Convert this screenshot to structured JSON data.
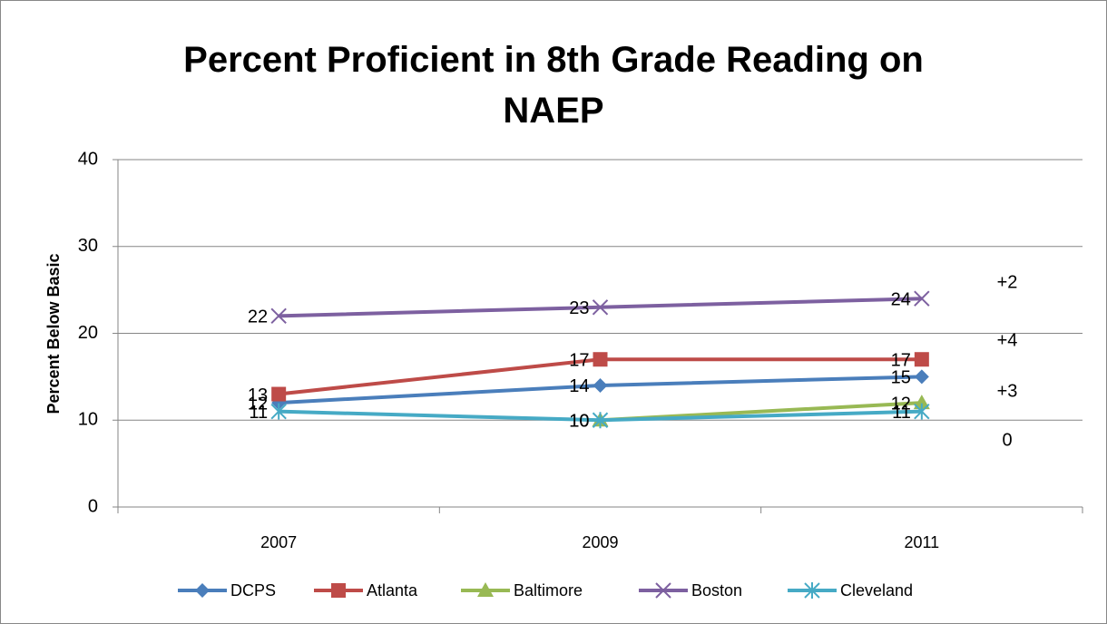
{
  "chart_data": {
    "type": "line",
    "title": "Percent Proficient in 8th Grade Reading on NAEP",
    "y_label": "Percent Below Basic",
    "categories": [
      "2007",
      "2009",
      "2011"
    ],
    "series": [
      {
        "name": "DCPS",
        "color": "#4a7ebb",
        "marker": "diamond",
        "values": [
          12,
          14,
          15
        ]
      },
      {
        "name": "Atlanta",
        "color": "#be4b48",
        "marker": "square",
        "values": [
          13,
          17,
          17
        ]
      },
      {
        "name": "Baltimore",
        "color": "#98b954",
        "marker": "triangle",
        "values": [
          null,
          10,
          12
        ]
      },
      {
        "name": "Boston",
        "color": "#7d60a0",
        "marker": "x",
        "values": [
          22,
          23,
          24
        ]
      },
      {
        "name": "Cleveland",
        "color": "#46aac5",
        "marker": "star",
        "values": [
          11,
          10,
          11
        ]
      }
    ],
    "annotations": [
      "+2",
      "+4",
      "+3",
      "0"
    ],
    "ylim": [
      0,
      40
    ],
    "yticks": [
      0,
      10,
      20,
      30,
      40
    ],
    "grid": true,
    "legend": "bottom"
  }
}
